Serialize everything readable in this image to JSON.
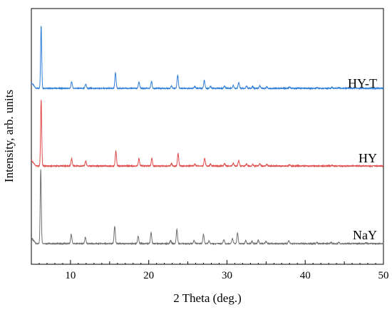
{
  "chart_data": {
    "type": "line",
    "xlabel": "2 Theta (deg.)",
    "ylabel": "Intensity, arb. units",
    "xlim": [
      5,
      50
    ],
    "xticks": [
      10,
      20,
      30,
      40,
      50
    ],
    "y_ticks_shown": false,
    "grid": false,
    "colors": {
      "HY-T": "#2f7ed8",
      "HY": "#e04848",
      "NaY": "#707070"
    },
    "peaks_2theta": [
      6.2,
      10.1,
      11.9,
      15.7,
      18.7,
      20.3,
      22.8,
      23.6,
      25.8,
      27.1,
      27.8,
      29.6,
      30.7,
      31.4,
      32.4,
      33.2,
      34.1,
      35.0,
      37.9,
      41.5,
      43.3,
      44.3,
      47.8
    ],
    "series": [
      {
        "name": "HY-T",
        "label": "HY-T",
        "baseline": 0.0,
        "peaks": [
          [
            6.25,
            8.0
          ],
          [
            10.15,
            0.85
          ],
          [
            11.95,
            0.55
          ],
          [
            15.75,
            2.0
          ],
          [
            18.75,
            0.85
          ],
          [
            20.35,
            0.9
          ],
          [
            22.9,
            0.3
          ],
          [
            23.7,
            1.7
          ],
          [
            25.9,
            0.25
          ],
          [
            27.1,
            1.0
          ],
          [
            27.9,
            0.25
          ],
          [
            29.7,
            0.3
          ],
          [
            30.8,
            0.35
          ],
          [
            31.5,
            0.75
          ],
          [
            32.5,
            0.3
          ],
          [
            33.3,
            0.25
          ],
          [
            34.2,
            0.35
          ],
          [
            35.1,
            0.2
          ],
          [
            38.0,
            0.2
          ],
          [
            41.5,
            0.1
          ],
          [
            43.4,
            0.15
          ],
          [
            44.3,
            0.1
          ]
        ]
      },
      {
        "name": "HY",
        "label": "HY",
        "baseline": 0.0,
        "peaks": [
          [
            6.25,
            8.5
          ],
          [
            10.15,
            0.95
          ],
          [
            11.95,
            0.65
          ],
          [
            15.8,
            1.9
          ],
          [
            18.75,
            0.95
          ],
          [
            20.4,
            0.95
          ],
          [
            22.9,
            0.3
          ],
          [
            23.75,
            1.6
          ],
          [
            25.9,
            0.25
          ],
          [
            27.15,
            1.0
          ],
          [
            27.9,
            0.25
          ],
          [
            29.7,
            0.3
          ],
          [
            30.8,
            0.35
          ],
          [
            31.5,
            0.7
          ],
          [
            32.5,
            0.25
          ],
          [
            33.3,
            0.2
          ],
          [
            34.2,
            0.3
          ],
          [
            35.1,
            0.2
          ],
          [
            38.0,
            0.15
          ],
          [
            43.4,
            0.1
          ]
        ]
      },
      {
        "name": "NaY",
        "label": "NaY",
        "baseline": 0.0,
        "peaks": [
          [
            6.2,
            9.5
          ],
          [
            10.1,
            1.2
          ],
          [
            11.9,
            0.8
          ],
          [
            15.65,
            2.2
          ],
          [
            18.65,
            1.0
          ],
          [
            20.3,
            1.4
          ],
          [
            22.8,
            0.4
          ],
          [
            23.6,
            1.8
          ],
          [
            25.8,
            0.4
          ],
          [
            27.0,
            1.2
          ],
          [
            27.7,
            0.35
          ],
          [
            29.6,
            0.5
          ],
          [
            30.7,
            0.65
          ],
          [
            31.35,
            1.4
          ],
          [
            32.4,
            0.4
          ],
          [
            33.2,
            0.35
          ],
          [
            34.0,
            0.45
          ],
          [
            35.0,
            0.3
          ],
          [
            37.9,
            0.4
          ],
          [
            41.5,
            0.15
          ],
          [
            43.3,
            0.2
          ],
          [
            44.3,
            0.15
          ],
          [
            47.8,
            0.1
          ]
        ]
      }
    ]
  }
}
